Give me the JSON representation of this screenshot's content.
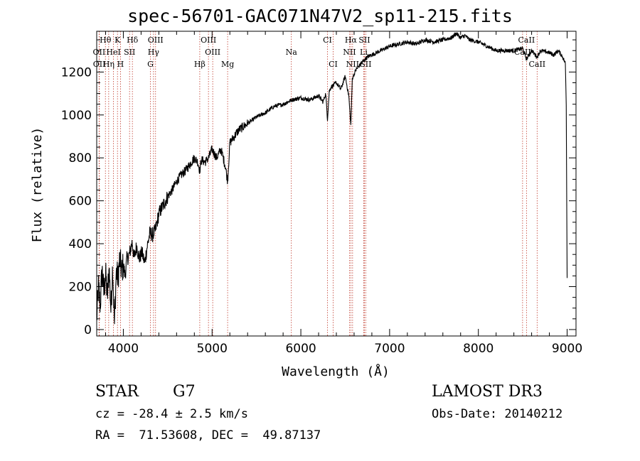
{
  "chart_data": {
    "type": "line",
    "title": "spec-56701-GAC071N47V2_sp11-215.fits",
    "xlabel": "Wavelength (Å)",
    "ylabel": "Flux (relative)",
    "xlim": [
      3700,
      9100
    ],
    "ylim": [
      -30,
      1390
    ],
    "xticks": [
      4000,
      5000,
      6000,
      7000,
      8000,
      9000
    ],
    "yticks": [
      0,
      200,
      400,
      600,
      800,
      1000,
      1200
    ],
    "series": [
      {
        "name": "spectrum",
        "x": [
          3700,
          3720,
          3740,
          3760,
          3780,
          3800,
          3820,
          3840,
          3860,
          3880,
          3900,
          3920,
          3940,
          3960,
          3980,
          4000,
          4020,
          4040,
          4060,
          4080,
          4100,
          4120,
          4150,
          4180,
          4210,
          4240,
          4270,
          4300,
          4330,
          4360,
          4400,
          4450,
          4500,
          4550,
          4600,
          4650,
          4700,
          4750,
          4800,
          4840,
          4861,
          4880,
          4920,
          4960,
          5000,
          5050,
          5100,
          5150,
          5175,
          5200,
          5250,
          5300,
          5400,
          5500,
          5600,
          5700,
          5800,
          5900,
          6000,
          6100,
          6200,
          6250,
          6280,
          6300,
          6320,
          6340,
          6400,
          6450,
          6500,
          6540,
          6563,
          6580,
          6620,
          6660,
          6700,
          6750,
          6800,
          6850,
          6900,
          6950,
          7000,
          7100,
          7200,
          7300,
          7400,
          7500,
          7600,
          7700,
          7750,
          7800,
          7850,
          7900,
          8000,
          8100,
          8200,
          8300,
          8400,
          8500,
          8542,
          8600,
          8662,
          8700,
          8800,
          8850,
          8900,
          8950,
          8980,
          8990,
          9000
        ],
        "y": [
          50,
          200,
          110,
          280,
          170,
          260,
          150,
          290,
          90,
          300,
          20,
          270,
          240,
          330,
          270,
          300,
          250,
          330,
          340,
          370,
          410,
          330,
          390,
          330,
          360,
          310,
          390,
          450,
          440,
          460,
          540,
          580,
          620,
          650,
          690,
          720,
          740,
          770,
          800,
          780,
          740,
          790,
          780,
          800,
          840,
          800,
          840,
          760,
          690,
          870,
          900,
          930,
          960,
          990,
          1010,
          1040,
          1050,
          1070,
          1080,
          1070,
          1090,
          1060,
          1100,
          980,
          1110,
          1130,
          1150,
          1120,
          1180,
          1090,
          950,
          1170,
          1210,
          1230,
          1250,
          1270,
          1280,
          1290,
          1300,
          1310,
          1320,
          1330,
          1340,
          1330,
          1350,
          1340,
          1350,
          1360,
          1380,
          1360,
          1370,
          1350,
          1340,
          1320,
          1300,
          1300,
          1300,
          1310,
          1260,
          1300,
          1270,
          1300,
          1290,
          1280,
          1300,
          1270,
          1240,
          1050,
          240
        ]
      }
    ],
    "lines": [
      {
        "name": "Hθ",
        "w": 3798,
        "row": 0
      },
      {
        "name": "K",
        "w": 3934,
        "row": 0
      },
      {
        "name": "Hδ",
        "w": 4102,
        "row": 0
      },
      {
        "name": "OIII",
        "w": 4363,
        "row": 0
      },
      {
        "name": "OIII",
        "w": 4959,
        "row": 0
      },
      {
        "name": "CI",
        "w": 6300,
        "row": 0
      },
      {
        "name": "Hα",
        "w": 6563,
        "row": 0
      },
      {
        "name": "SII",
        "w": 6716,
        "row": 0
      },
      {
        "name": "CaII",
        "w": 8542,
        "row": 0
      },
      {
        "name": "OII",
        "w": 3727,
        "row": 1
      },
      {
        "name": "HeI",
        "w": 3889,
        "row": 1
      },
      {
        "name": "SII",
        "w": 4070,
        "row": 1
      },
      {
        "name": "Hγ",
        "w": 4340,
        "row": 1
      },
      {
        "name": "OIII",
        "w": 5007,
        "row": 1
      },
      {
        "name": "Na",
        "w": 5893,
        "row": 1
      },
      {
        "name": "NII",
        "w": 6548,
        "row": 1
      },
      {
        "name": "Li",
        "w": 6708,
        "row": 1
      },
      {
        "name": "CaII",
        "w": 8498,
        "row": 1
      },
      {
        "name": "OII",
        "w": 3729,
        "row": 2
      },
      {
        "name": "Hη",
        "w": 3835,
        "row": 2
      },
      {
        "name": "H",
        "w": 3968,
        "row": 2
      },
      {
        "name": "G",
        "w": 4305,
        "row": 2
      },
      {
        "name": "Hβ",
        "w": 4861,
        "row": 2
      },
      {
        "name": "Mg",
        "w": 5175,
        "row": 2
      },
      {
        "name": "CI",
        "w": 6364,
        "row": 2
      },
      {
        "name": "NII",
        "w": 6583,
        "row": 2
      },
      {
        "name": "SII",
        "w": 6731,
        "row": 2
      },
      {
        "name": "CaII",
        "w": 8662,
        "row": 2
      }
    ]
  },
  "info": {
    "class": "STAR",
    "subclass": "G7",
    "cz": "cz = -28.4 ± 2.5 km/s",
    "radec": "RA =  71.53608, DEC =  49.87137",
    "survey": "LAMOST DR3",
    "obs_date": "Obs-Date: 20140212"
  }
}
